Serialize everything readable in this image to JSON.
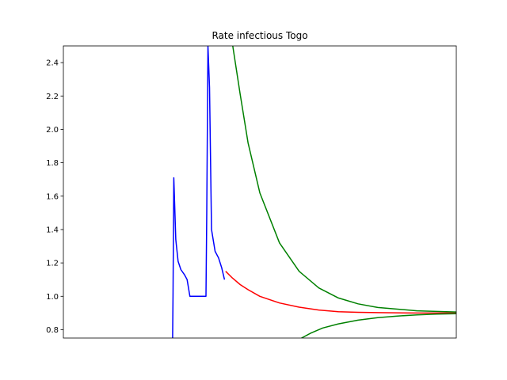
{
  "chart_data": {
    "type": "line",
    "title": "Rate infectious Togo",
    "xlabel": "",
    "ylabel": "",
    "xlim": [
      0,
      100
    ],
    "ylim": [
      0.75,
      2.5
    ],
    "x_ticks_visible": false,
    "y_ticks": [
      0.8,
      1.0,
      1.2,
      1.4,
      1.6,
      1.8,
      2.0,
      2.2,
      2.4
    ],
    "grid": false,
    "legend": "none",
    "series": [
      {
        "color": "#0000ff",
        "points": [
          [
            27.8,
            0.75
          ],
          [
            27.9,
            1.0
          ],
          [
            28.1,
            1.71
          ],
          [
            28.6,
            1.34
          ],
          [
            29.2,
            1.21
          ],
          [
            29.9,
            1.16
          ],
          [
            30.8,
            1.13
          ],
          [
            31.5,
            1.1
          ],
          [
            32.2,
            1.0
          ],
          [
            35.6,
            1.0
          ],
          [
            36.3,
            1.0
          ],
          [
            36.5,
            1.5
          ],
          [
            36.8,
            2.5
          ],
          [
            37.2,
            2.25
          ],
          [
            37.7,
            1.4
          ],
          [
            38.6,
            1.27
          ],
          [
            39.5,
            1.23
          ],
          [
            40.3,
            1.17
          ],
          [
            41.0,
            1.1
          ]
        ]
      },
      {
        "color": "#ff0000",
        "points": [
          [
            41.3,
            1.15
          ],
          [
            43,
            1.11
          ],
          [
            45,
            1.07
          ],
          [
            47,
            1.04
          ],
          [
            50,
            1.0
          ],
          [
            55,
            0.96
          ],
          [
            60,
            0.935
          ],
          [
            65,
            0.918
          ],
          [
            70,
            0.908
          ],
          [
            75,
            0.904
          ],
          [
            80,
            0.902
          ],
          [
            90,
            0.9
          ],
          [
            100,
            0.9
          ],
          [
            103,
            0.9
          ]
        ]
      },
      {
        "color": "#008000",
        "points": [
          [
            43.1,
            2.5
          ],
          [
            45,
            2.21
          ],
          [
            47,
            1.92
          ],
          [
            50,
            1.62
          ],
          [
            55,
            1.32
          ],
          [
            60,
            1.15
          ],
          [
            65,
            1.05
          ],
          [
            70,
            0.99
          ],
          [
            75,
            0.955
          ],
          [
            80,
            0.933
          ],
          [
            90,
            0.913
          ],
          [
            100,
            0.906
          ],
          [
            103,
            0.905
          ]
        ]
      },
      {
        "color": "#008000",
        "points": [
          [
            60.6,
            0.75
          ],
          [
            63,
            0.78
          ],
          [
            66,
            0.81
          ],
          [
            70,
            0.835
          ],
          [
            75,
            0.857
          ],
          [
            80,
            0.872
          ],
          [
            85,
            0.882
          ],
          [
            90,
            0.889
          ],
          [
            95,
            0.893
          ],
          [
            100,
            0.896
          ],
          [
            103,
            0.897
          ]
        ]
      }
    ]
  }
}
